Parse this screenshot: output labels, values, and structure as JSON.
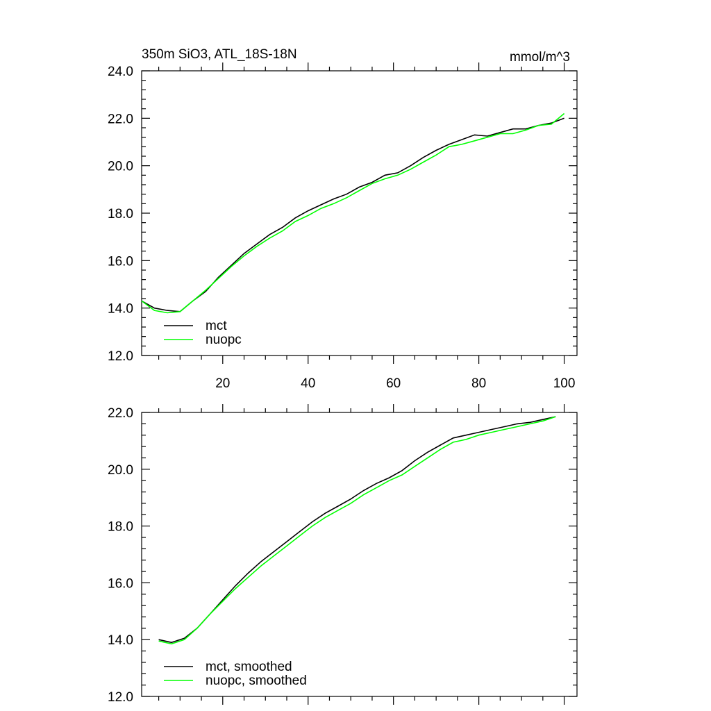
{
  "chart_data": [
    {
      "type": "line",
      "title": "350m SiO3, ATL_18S-18N",
      "units": "mmol/m^3",
      "x": [
        1,
        4,
        7,
        10,
        13,
        16,
        19,
        22,
        25,
        28,
        31,
        34,
        37,
        40,
        43,
        46,
        49,
        52,
        55,
        58,
        61,
        64,
        67,
        70,
        73,
        76,
        79,
        82,
        85,
        88,
        91,
        94,
        97,
        100
      ],
      "series": [
        {
          "name": "mct",
          "color": "#000000",
          "values": [
            14.3,
            14.0,
            13.9,
            13.85,
            14.3,
            14.7,
            15.3,
            15.8,
            16.3,
            16.7,
            17.1,
            17.4,
            17.8,
            18.1,
            18.35,
            18.6,
            18.8,
            19.1,
            19.3,
            19.6,
            19.7,
            20.0,
            20.35,
            20.65,
            20.9,
            21.1,
            21.3,
            21.25,
            21.4,
            21.55,
            21.55,
            21.7,
            21.8,
            22.0
          ]
        },
        {
          "name": "nuopc",
          "color": "#00ff00",
          "values": [
            14.3,
            13.9,
            13.8,
            13.85,
            14.3,
            14.75,
            15.25,
            15.75,
            16.2,
            16.6,
            16.95,
            17.25,
            17.65,
            17.9,
            18.2,
            18.4,
            18.65,
            18.95,
            19.25,
            19.45,
            19.6,
            19.85,
            20.15,
            20.45,
            20.8,
            20.9,
            21.05,
            21.2,
            21.35,
            21.35,
            21.5,
            21.7,
            21.75,
            22.2
          ]
        }
      ],
      "xlim": [
        1,
        103
      ],
      "xticks": [
        20,
        40,
        60,
        80,
        100
      ],
      "xtick_labels": true,
      "ylim": [
        12,
        24
      ],
      "yticks": [
        {
          "value": 12,
          "label": "12.0"
        },
        {
          "value": 14,
          "label": "14.0"
        },
        {
          "value": 16,
          "label": "16.0"
        },
        {
          "value": 18,
          "label": "18.0"
        },
        {
          "value": 20,
          "label": "20.0"
        },
        {
          "value": 22,
          "label": "22.0"
        },
        {
          "value": 24,
          "label": "24.0"
        }
      ],
      "legend": "lower left"
    },
    {
      "type": "line",
      "x": [
        5,
        8,
        11,
        14,
        17,
        20,
        23,
        26,
        29,
        32,
        35,
        38,
        41,
        44,
        47,
        50,
        53,
        56,
        59,
        62,
        65,
        68,
        71,
        74,
        77,
        80,
        83,
        86,
        89,
        92,
        95,
        98
      ],
      "series": [
        {
          "name": "mct, smoothed",
          "color": "#000000",
          "values": [
            14.0,
            13.9,
            14.05,
            14.4,
            14.9,
            15.4,
            15.9,
            16.35,
            16.75,
            17.1,
            17.45,
            17.8,
            18.15,
            18.45,
            18.7,
            18.95,
            19.25,
            19.5,
            19.7,
            19.95,
            20.3,
            20.6,
            20.85,
            21.1,
            21.2,
            21.3,
            21.4,
            21.5,
            21.6,
            21.65,
            21.75,
            21.85
          ]
        },
        {
          "name": "nuopc, smoothed",
          "color": "#00ff00",
          "values": [
            13.95,
            13.85,
            14.0,
            14.4,
            14.9,
            15.35,
            15.8,
            16.2,
            16.6,
            16.95,
            17.3,
            17.65,
            18.0,
            18.3,
            18.55,
            18.8,
            19.1,
            19.35,
            19.6,
            19.8,
            20.1,
            20.4,
            20.7,
            20.95,
            21.05,
            21.2,
            21.3,
            21.4,
            21.5,
            21.6,
            21.7,
            21.85
          ]
        }
      ],
      "xlim": [
        1,
        103
      ],
      "xticks": [
        20,
        40,
        60,
        80,
        100
      ],
      "xtick_labels": false,
      "ylim": [
        12,
        22
      ],
      "yticks": [
        {
          "value": 12,
          "label": "12.0"
        },
        {
          "value": 14,
          "label": "14.0"
        },
        {
          "value": 16,
          "label": "16.0"
        },
        {
          "value": 18,
          "label": "18.0"
        },
        {
          "value": 20,
          "label": "20.0"
        },
        {
          "value": 22,
          "label": "22.0"
        }
      ],
      "legend": "lower left"
    }
  ]
}
